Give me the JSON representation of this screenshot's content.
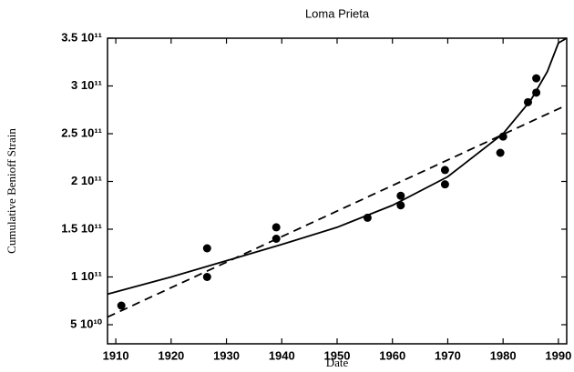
{
  "chart_data": {
    "type": "scatter",
    "title": "Loma Prieta",
    "xlabel": "Date",
    "ylabel": "Cumulative Benioff Strain",
    "xlim": [
      1908.5,
      1991.5
    ],
    "ylim": [
      30000000000,
      350000000000
    ],
    "xticks": [
      1910,
      1920,
      1930,
      1940,
      1950,
      1960,
      1970,
      1980,
      1990
    ],
    "yticks": [
      {
        "value": 50000000000,
        "label": "5 10¹⁰"
      },
      {
        "value": 100000000000,
        "label": "1 10¹¹"
      },
      {
        "value": 150000000000,
        "label": "1.5 10¹¹"
      },
      {
        "value": 200000000000,
        "label": "2 10¹¹"
      },
      {
        "value": 250000000000,
        "label": "2.5 10¹¹"
      },
      {
        "value": 300000000000,
        "label": "3 10¹¹"
      },
      {
        "value": 350000000000,
        "label": "3.5 10¹¹"
      }
    ],
    "series": [
      {
        "style": "markers",
        "color": "#000000",
        "x": [
          1911,
          1926.5,
          1926.5,
          1939,
          1939,
          1955.5,
          1961.5,
          1961.5,
          1969.5,
          1969.5,
          1979.5,
          1980,
          1984.5,
          1986,
          1986
        ],
        "values": [
          70000000000,
          130000000000,
          100000000000,
          152000000000,
          140000000000,
          162000000000,
          185000000000,
          175000000000,
          212000000000,
          197000000000,
          230000000000,
          247000000000,
          283000000000,
          293000000000,
          308000000000
        ]
      },
      {
        "style": "solid",
        "color": "#000000",
        "x": [
          1908.5,
          1920,
          1930,
          1940,
          1950,
          1960,
          1970,
          1980,
          1985,
          1988,
          1990,
          1991.5
        ],
        "values": [
          82000000000,
          100000000000,
          117000000000,
          134000000000,
          152000000000,
          175000000000,
          205000000000,
          250000000000,
          285000000000,
          315000000000,
          345000000000,
          350000000000
        ]
      },
      {
        "style": "dashed",
        "color": "#000000",
        "x": [
          1908.5,
          1991.5
        ],
        "values": [
          58000000000,
          280000000000
        ]
      }
    ]
  }
}
